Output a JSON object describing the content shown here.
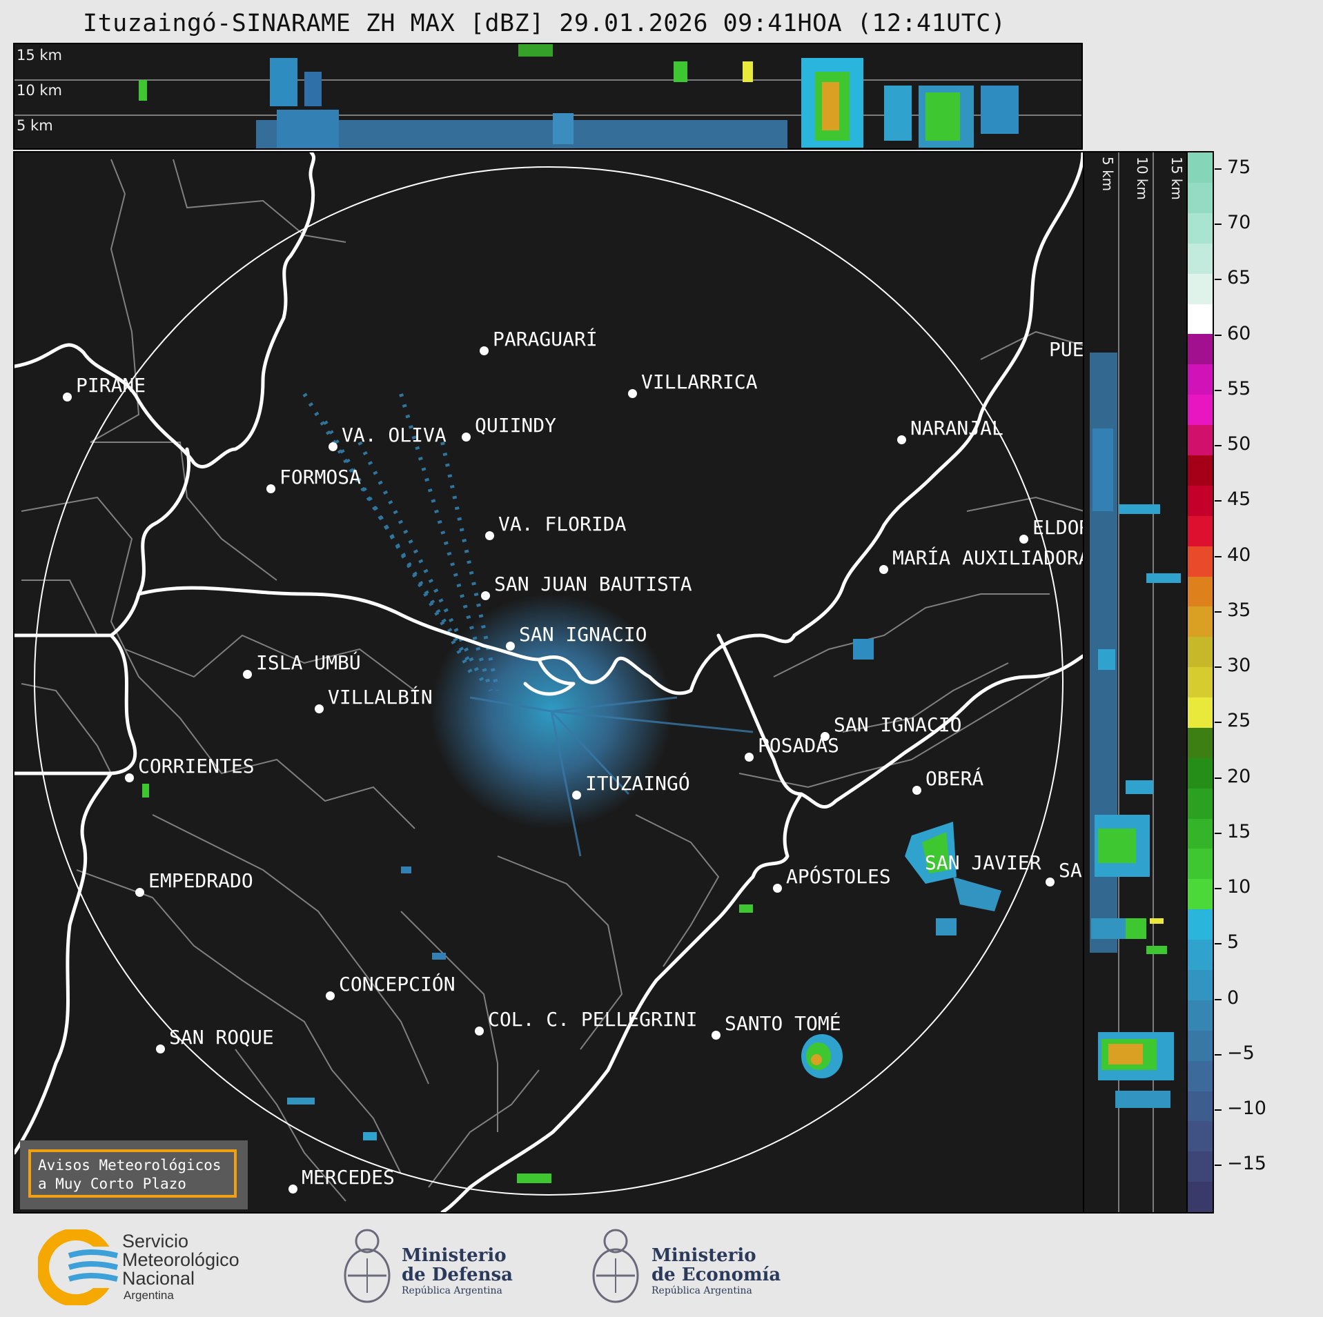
{
  "title": "Ituzaingó-SINARAME ZH MAX [dBZ] 29.01.2026 09:41HOA (12:41UTC)",
  "top_panel": {
    "alt_labels": [
      "15 km",
      "10 km",
      "5 km"
    ]
  },
  "side_panel": {
    "alt_labels": [
      "5 km",
      "10 km",
      "15 km"
    ]
  },
  "colorbar": {
    "ticks": [
      "75",
      "70",
      "65",
      "60",
      "55",
      "50",
      "45",
      "40",
      "35",
      "30",
      "25",
      "20",
      "15",
      "10",
      "5",
      "0",
      "−5",
      "−10",
      "−15"
    ],
    "range": [
      -19,
      76
    ],
    "colors": [
      "#3a3a6a",
      "#3e4577",
      "#405183",
      "#3e5d8f",
      "#3b6a9b",
      "#3878a7",
      "#3586b3",
      "#3294c0",
      "#2fa3cd",
      "#2ab5dc",
      "#4bd93a",
      "#3fc731",
      "#33b429",
      "#2aa120",
      "#248e18",
      "#3d7f12",
      "#e9e93b",
      "#d6cc30",
      "#c7b82a",
      "#d9a024",
      "#de801c",
      "#e84a2a",
      "#dd1030",
      "#c4002a",
      "#a40018",
      "#d0106a",
      "#e816c0",
      "#d112b8",
      "#a21090",
      "#ffffff",
      "#e0f3ea",
      "#c2ebdd",
      "#a9e4d0",
      "#93dcc3",
      "#85d6b9"
    ]
  },
  "cities": [
    {
      "name": "PIRANE"
    },
    {
      "name": "PARAGUARÍ"
    },
    {
      "name": "VILLARRICA"
    },
    {
      "name": "QUIINDY"
    },
    {
      "name": "VA. OLIVA"
    },
    {
      "name": "NARANJAL"
    },
    {
      "name": "FORMOSA"
    },
    {
      "name": "VA. FLORIDA"
    },
    {
      "name": "ELDORADO"
    },
    {
      "name": "MARÍA AUXILIADORA"
    },
    {
      "name": "SAN JUAN BAUTISTA"
    },
    {
      "name": "SAN IGNACIO"
    },
    {
      "name": "ISLA UMBÚ"
    },
    {
      "name": "VILLALBÍN"
    },
    {
      "name": "SAN IGNACIO"
    },
    {
      "name": "POSADAS"
    },
    {
      "name": "CORRIENTES"
    },
    {
      "name": "ITUZAINGÓ"
    },
    {
      "name": "OBERÁ"
    },
    {
      "name": "EMPEDRADO"
    },
    {
      "name": "APÓSTOLES"
    },
    {
      "name": "SAN JAVIER"
    },
    {
      "name": "SAN"
    },
    {
      "name": "CONCEPCIÓN"
    },
    {
      "name": "COL. C. PELLEGRINI"
    },
    {
      "name": "SANTO TOMÉ"
    },
    {
      "name": "SAN ROQUE"
    },
    {
      "name": "MERCEDES"
    },
    {
      "name": "PUERTO"
    }
  ],
  "warning": {
    "line1": "Avisos Meteorológicos",
    "line2": "a Muy Corto Plazo"
  },
  "logos": {
    "smn": {
      "line1": "Servicio",
      "line2": "Meteorológico",
      "line3": "Nacional",
      "line4": "Argentina"
    },
    "defensa": {
      "line1": "Ministerio",
      "line2": "de Defensa",
      "line3": "República Argentina"
    },
    "economia": {
      "line1": "Ministerio",
      "line2": "de Economía",
      "line3": "República Argentina"
    }
  }
}
